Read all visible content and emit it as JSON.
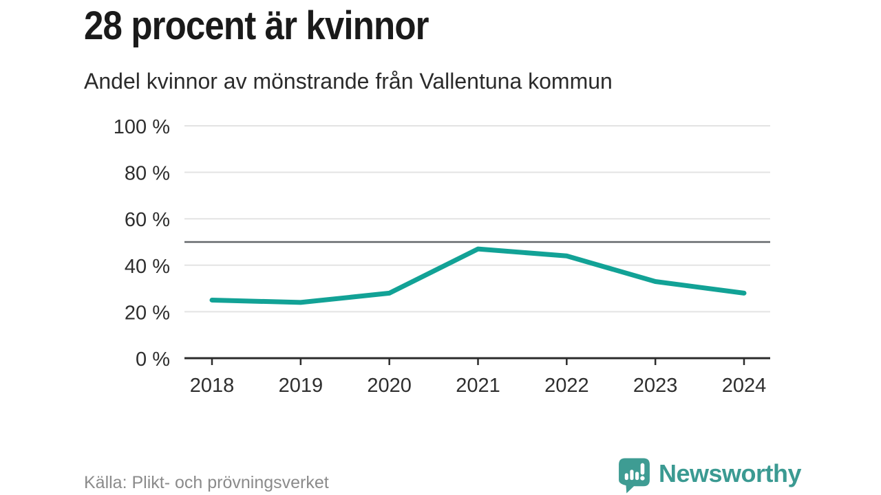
{
  "header": {
    "title": "28 procent är kvinnor",
    "subtitle": "Andel kvinnor av mönstrande från Vallentuna kommun"
  },
  "footer": {
    "source": "Källa: Plikt- och prövningsverket",
    "brand": "Newsworthy",
    "brand_icon": "speech-bubble-bar-chart-icon"
  },
  "chart_data": {
    "type": "line",
    "title": "28 procent är kvinnor",
    "subtitle": "Andel kvinnor av mönstrande från Vallentuna kommun",
    "categories": [
      "2018",
      "2019",
      "2020",
      "2021",
      "2022",
      "2023",
      "2024"
    ],
    "series": [
      {
        "name": "Andel kvinnor av mönstrande",
        "values": [
          25,
          24,
          28,
          47,
          44,
          33,
          28
        ]
      }
    ],
    "xlabel": "",
    "ylabel": "",
    "ylim": [
      0,
      100
    ],
    "yticks": [
      0,
      20,
      40,
      60,
      80,
      100
    ],
    "ytick_suffix": " %",
    "reference_line": 50,
    "grid": true,
    "legend": "none",
    "line_color": "#12a296",
    "grid_color": "#e3e3e3",
    "ref_line_color": "#63666a",
    "axis_color": "#2b2b2b",
    "label_color": "#2e2e2e"
  },
  "colors": {
    "background": "#ffffff",
    "title_text": "#1a1a1a",
    "subtitle_text": "#2b2b2b",
    "source_text": "#8b8b8b",
    "brand_teal": "#3b9a92"
  }
}
